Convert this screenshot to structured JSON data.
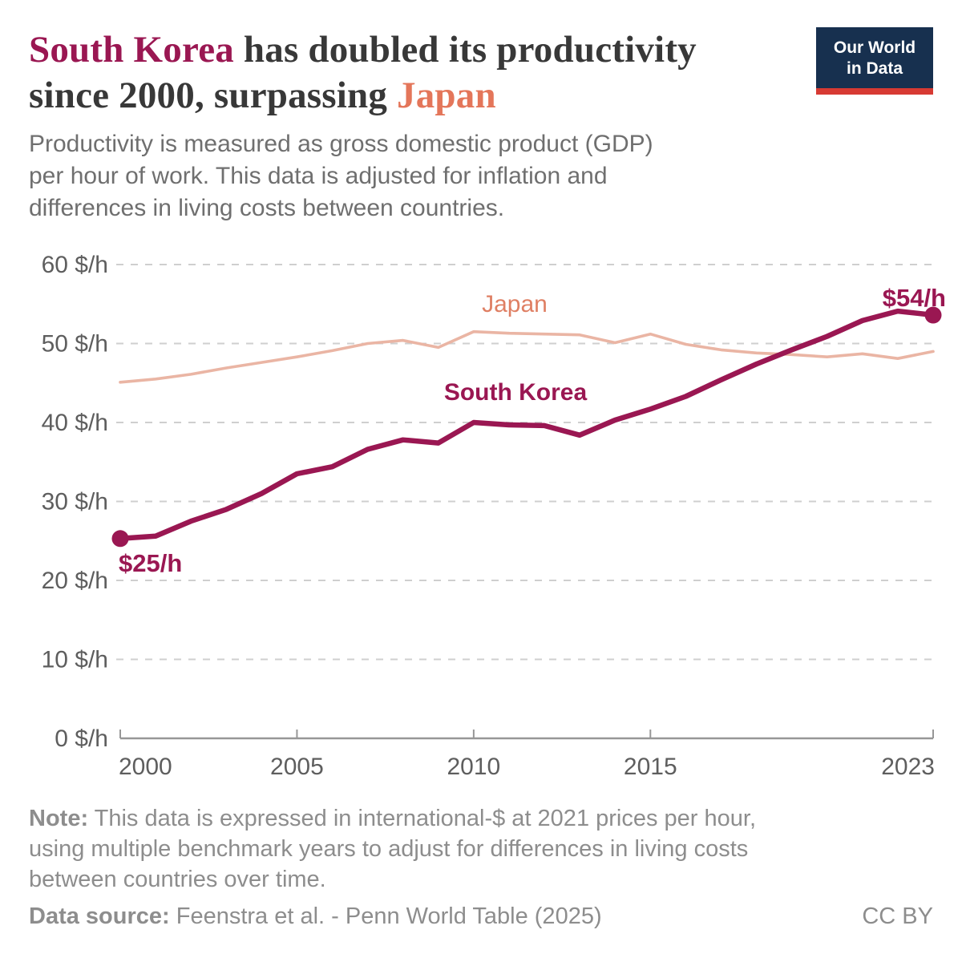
{
  "header": {
    "title": {
      "highlight_1": "South Korea",
      "segment_1": " has doubled its productivity",
      "segment_2": "since 2000, surpassing ",
      "highlight_2": "Japan"
    },
    "subtitle_lines": [
      "Productivity is measured as gross domestic product (GDP)",
      "per hour of work. This data is adjusted for inflation and",
      "differences in living costs between countries."
    ],
    "logo_lines": [
      "Our World",
      "in Data"
    ]
  },
  "chart_data": {
    "type": "line",
    "unit": "$/h",
    "x": [
      2000,
      2001,
      2002,
      2003,
      2004,
      2005,
      2006,
      2007,
      2008,
      2009,
      2010,
      2011,
      2012,
      2013,
      2014,
      2015,
      2016,
      2017,
      2018,
      2019,
      2020,
      2021,
      2022,
      2023
    ],
    "series": [
      {
        "name": "Japan",
        "label_color": "#df7f63",
        "line_color": "#eab5a4",
        "values": [
          45.1,
          45.5,
          46.1,
          46.9,
          47.6,
          48.3,
          49.1,
          50.0,
          50.4,
          49.5,
          51.5,
          51.3,
          51.2,
          51.1,
          50.1,
          51.2,
          49.9,
          49.2,
          48.8,
          48.6,
          48.3,
          48.7,
          48.1,
          49.0
        ]
      },
      {
        "name": "South Korea",
        "label_color": "#9a1752",
        "line_color": "#9a1752",
        "values": [
          25.3,
          25.6,
          27.5,
          29.0,
          31.0,
          33.5,
          34.4,
          36.6,
          37.8,
          37.4,
          40.0,
          39.7,
          39.6,
          38.4,
          40.3,
          41.7,
          43.3,
          45.4,
          47.4,
          49.2,
          50.9,
          52.9,
          54.1,
          53.6
        ],
        "endpoint_dots": true
      }
    ],
    "annotations": [
      {
        "text": "$25/h",
        "color": "#9a1752"
      },
      {
        "text": "$54/h",
        "color": "#9a1752"
      }
    ],
    "xlim": [
      2000,
      2023
    ],
    "ylim": [
      0,
      60
    ],
    "x_ticks": [
      2000,
      2005,
      2010,
      2015,
      2023
    ],
    "y_ticks": [
      0,
      10,
      20,
      30,
      40,
      50,
      60
    ],
    "y_tick_suffix": " $/h",
    "grid": "horizontal-dashed",
    "legend_position": "inline-labels"
  },
  "footer": {
    "note_label": "Note:",
    "note_lines": [
      " This data is expressed in international-$ at 2021 prices per hour,",
      "using multiple benchmark years to adjust for differences in living costs",
      "between countries over time."
    ],
    "source_label": "Data source:",
    "source_text": " Feenstra et al. - Penn World Table (2025)",
    "license": "CC BY"
  }
}
